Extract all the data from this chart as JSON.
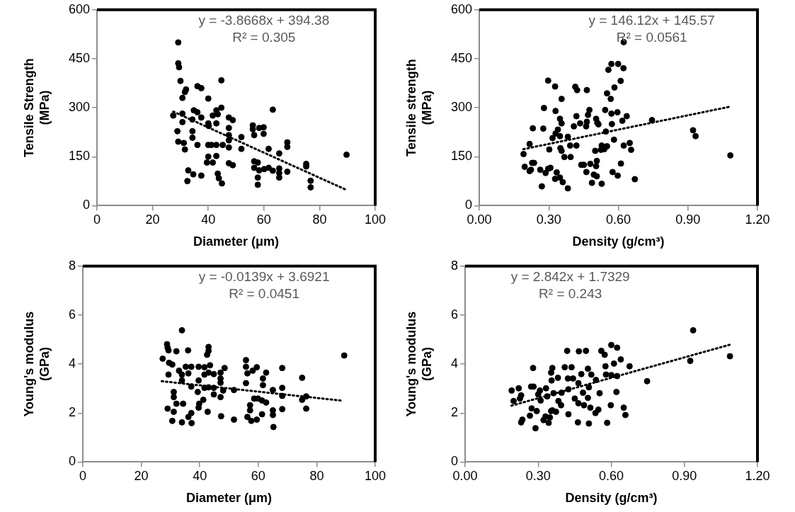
{
  "chart_data": [
    {
      "type": "scatter",
      "xlabel": "Diameter (μm)",
      "ylabel": "Tensile Strength (MPa)",
      "xlim": [
        0,
        100
      ],
      "xticks": [
        0,
        20,
        40,
        60,
        80,
        100
      ],
      "ylim": [
        0,
        600
      ],
      "yticks": [
        0,
        150,
        300,
        450,
        600
      ],
      "grid": false,
      "legend": false,
      "annotations": [
        "y = -3.8668x + 394.38",
        "R² = 0.305"
      ],
      "series": [
        {
          "color": "#000000",
          "marker": "circle",
          "x": [
            29.2,
            29.2,
            29.5,
            30,
            32,
            31.6,
            30.7,
            36.1,
            37.5,
            40,
            44.7,
            27.4,
            30.7,
            30.7,
            28.9,
            29.2,
            31.6,
            31.2,
            34.3,
            34.8,
            36.1,
            37.5,
            34.3,
            34.3,
            36.1,
            32.8,
            32.5,
            34.6,
            37.5,
            40,
            41.6,
            42.9,
            44.7,
            43.4,
            42.9,
            40.2,
            40,
            41.1,
            42.9,
            45.2,
            40,
            42.9,
            39.5,
            41.6,
            43.4,
            43.8,
            44.9,
            47.4,
            48.8,
            47.4,
            47.4,
            47.4,
            47.4,
            47.4,
            48.8,
            51.9,
            51.9,
            56,
            56,
            58.3,
            59.9,
            56.5,
            59.9,
            61.7,
            65.5,
            63.2,
            68.4,
            68.4,
            56.5,
            57.8,
            56.5,
            58.3,
            60.1,
            61.7,
            63.2,
            65.5,
            65.5,
            65.5,
            68.4,
            57.8,
            57.8,
            75.2,
            75.2,
            76.8,
            76.8,
            89.7
          ],
          "values": [
            500,
            436,
            424,
            382,
            356,
            348,
            330,
            366,
            360,
            328,
            384,
            276,
            282,
            256,
            228,
            196,
            172,
            192,
            264,
            292,
            286,
            270,
            228,
            208,
            186,
            108,
            75,
            96,
            92,
            252,
            276,
            292,
            300,
            280,
            252,
            244,
            186,
            186,
            186,
            186,
            150,
            152,
            132,
            132,
            98,
            84,
            68,
            270,
            262,
            238,
            216,
            200,
            178,
            130,
            124,
            210,
            174,
            246,
            234,
            238,
            240,
            216,
            220,
            174,
            160,
            294,
            194,
            180,
            136,
            132,
            116,
            108,
            112,
            116,
            107,
            114,
            100,
            86,
            104,
            86,
            64,
            128,
            120,
            76,
            56,
            156
          ]
        },
        {
          "type": "line",
          "color": "#000000",
          "marker": "none",
          "line_style": "dotted",
          "x": [
            27.4,
            89.7
          ],
          "values": [
            288,
            48
          ]
        }
      ]
    },
    {
      "type": "scatter",
      "xlabel": "Density (g/cm³)",
      "ylabel": "Tensile strength (MPa)",
      "xlim": [
        0,
        1.2
      ],
      "xticks": [
        {
          "value": 0,
          "label": "0.00"
        },
        {
          "value": 0.3,
          "label": "0.30"
        },
        {
          "value": 0.6,
          "label": "0.60"
        },
        {
          "value": 0.9,
          "label": "0.90"
        },
        {
          "value": 1.2,
          "label": "1.20"
        }
      ],
      "ylim": [
        0,
        600
      ],
      "yticks": [
        0,
        150,
        300,
        450,
        600
      ],
      "grid": false,
      "legend": false,
      "annotations": [
        "y = 146.12x + 145.57",
        "R² = 0.0561"
      ],
      "series": [
        {
          "color": "#000000",
          "marker": "circle",
          "x": [
            0.191,
            0.196,
            0.217,
            0.217,
            0.223,
            0.228,
            0.236,
            0.231,
            0.263,
            0.27,
            0.276,
            0.279,
            0.286,
            0.297,
            0.307,
            0.297,
            0.302,
            0.327,
            0.329,
            0.316,
            0.329,
            0.339,
            0.348,
            0.355,
            0.348,
            0.35,
            0.355,
            0.355,
            0.334,
            0.327,
            0.348,
            0.36,
            0.382,
            0.367,
            0.382,
            0.392,
            0.394,
            0.408,
            0.419,
            0.419,
            0.422,
            0.414,
            0.435,
            0.44,
            0.451,
            0.462,
            0.461,
            0.464,
            0.464,
            0.469,
            0.475,
            0.479,
            0.486,
            0.494,
            0.5,
            0.504,
            0.507,
            0.504,
            0.509,
            0.514,
            0.507,
            0.528,
            0.528,
            0.525,
            0.539,
            0.551,
            0.546,
            0.543,
            0.551,
            0.567,
            0.557,
            0.57,
            0.599,
            0.622,
            0.61,
            0.583,
            0.57,
            0.572,
            0.581,
            0.575,
            0.597,
            0.596,
            0.617,
            0.623,
            0.636,
            0.611,
            0.623,
            0.649,
            0.655,
            0.671,
            0.745,
            0.922,
            0.933,
            1.083
          ],
          "values": [
            158,
            119,
            189,
            106,
            110,
            131,
            131,
            237,
            110,
            59,
            236,
            299,
            100,
            113,
            116,
            383,
            172,
            365,
            290,
            207,
            221,
            233,
            266,
            252,
            213,
            176,
            168,
            327,
            102,
            82,
            86,
            72,
            53,
            149,
            211,
            184,
            149,
            243,
            184,
            274,
            354,
            364,
            252,
            125,
            125,
            103,
            243,
            257,
            354,
            278,
            293,
            128,
            70,
            95,
            168,
            121,
            137,
            266,
            254,
            249,
            90,
            67,
            184,
            171,
            173,
            182,
            227,
            293,
            344,
            327,
            416,
            434,
            434,
            421,
            382,
            362,
            282,
            250,
            202,
            103,
            92,
            286,
            260,
            184,
            274,
            129,
            501,
            192,
            171,
            81,
            262,
            231,
            213,
            154
          ]
        },
        {
          "type": "line",
          "color": "#000000",
          "marker": "none",
          "line_style": "dotted",
          "x": [
            0.19,
            1.08
          ],
          "values": [
            173,
            303
          ]
        }
      ]
    },
    {
      "type": "scatter",
      "xlabel": "Diameter (μm)",
      "ylabel": "Young's modulus (GPa)",
      "xlim": [
        0,
        100
      ],
      "xticks": [
        0,
        20,
        40,
        60,
        80,
        100
      ],
      "ylim": [
        0,
        8
      ],
      "yticks": [
        0,
        2,
        4,
        6,
        8
      ],
      "grid": false,
      "legend": false,
      "annotations": [
        "y = -0.0139x + 3.6921",
        "R² = 0.0451"
      ],
      "series": [
        {
          "color": "#000000",
          "marker": "circle",
          "x": [
            33.9,
            28.8,
            29,
            29.3,
            32,
            36,
            43,
            43,
            42.5,
            27.3,
            29.5,
            30.6,
            35.2,
            37.1,
            39.6,
            41.6,
            43.5,
            48.5,
            29.3,
            32.9,
            33.9,
            36.1,
            33.9,
            37.1,
            39.6,
            41.6,
            43,
            44.8,
            47.1,
            47.1,
            47.1,
            41.6,
            43,
            44.8,
            39.3,
            44.8,
            47.1,
            48,
            51.7,
            31.1,
            31.1,
            32,
            34.3,
            29,
            31.1,
            41.2,
            39.8,
            39.6,
            42.7,
            37.1,
            36.1,
            30.6,
            33.9,
            37.2,
            47.3,
            51.7,
            55.8,
            55.8,
            56.3,
            59.5,
            58.1,
            62.7,
            55.8,
            61.6,
            61.6,
            65,
            68.2,
            68.2,
            68.2,
            58.6,
            59.9,
            61.3,
            62.7,
            57.2,
            57.2,
            56.3,
            57.6,
            59.5,
            61.3,
            65,
            65,
            68.2,
            65.2,
            75,
            75,
            76.4,
            76.4,
            89.4
          ],
          "values": [
            5.38,
            4.81,
            4.67,
            4.56,
            4.52,
            4.56,
            4.7,
            4.54,
            4.38,
            4.22,
            4.05,
            3.98,
            3.89,
            3.89,
            3.89,
            3.87,
            3.95,
            3.84,
            3.57,
            3.73,
            3.57,
            3.62,
            3.33,
            3.08,
            3.33,
            3.57,
            3.65,
            3.59,
            3.65,
            3.41,
            3.24,
            3.03,
            3.05,
            3.03,
            2.86,
            2.76,
            2.65,
            2.92,
            2.94,
            2.86,
            2.65,
            2.38,
            2.38,
            2.18,
            2.05,
            2.54,
            2.38,
            2.22,
            2.05,
            2,
            1.84,
            1.68,
            1.62,
            1.59,
            1.87,
            1.73,
            4.16,
            3.89,
            3.62,
            3.87,
            3.73,
            3.65,
            3.22,
            3.41,
            3.14,
            2.94,
            3.84,
            3.03,
            2.7,
            2.59,
            2.59,
            2.51,
            2.43,
            2.32,
            2.11,
            1.84,
            1.68,
            1.73,
            1.95,
            2.11,
            1.92,
            2.16,
            1.43,
            3.44,
            2.54,
            2.68,
            2.18,
            4.35
          ]
        },
        {
          "type": "line",
          "color": "#000000",
          "marker": "none",
          "line_style": "dotted",
          "x": [
            27,
            89
          ],
          "values": [
            3.3,
            2.5
          ]
        }
      ]
    },
    {
      "type": "scatter",
      "xlabel": "Density (g/cm³)",
      "ylabel": "Young's modulus (GPa)",
      "xlim": [
        0,
        1.2
      ],
      "xticks": [
        {
          "value": 0,
          "label": "0.00"
        },
        {
          "value": 0.3,
          "label": "0.30"
        },
        {
          "value": 0.6,
          "label": "0.60"
        },
        {
          "value": 0.9,
          "label": "0.90"
        },
        {
          "value": 1.2,
          "label": "1.20"
        }
      ],
      "ylim": [
        0,
        8
      ],
      "yticks": [
        0,
        2,
        4,
        6,
        8
      ],
      "grid": false,
      "legend": false,
      "annotations": [
        "y = 2.842x + 1.7329",
        "R² = 0.243"
      ],
      "series": [
        {
          "color": "#000000",
          "marker": "circle",
          "x": [
            0.191,
            0.199,
            0.22,
            0.23,
            0.225,
            0.23,
            0.235,
            0.266,
            0.273,
            0.271,
            0.279,
            0.281,
            0.289,
            0.294,
            0.3,
            0.307,
            0.31,
            0.322,
            0.33,
            0.332,
            0.337,
            0.343,
            0.348,
            0.353,
            0.358,
            0.355,
            0.353,
            0.358,
            0.363,
            0.373,
            0.381,
            0.383,
            0.394,
            0.396,
            0.409,
            0.419,
            0.422,
            0.424,
            0.424,
            0.437,
            0.443,
            0.45,
            0.463,
            0.465,
            0.465,
            0.467,
            0.477,
            0.484,
            0.488,
            0.496,
            0.504,
            0.504,
            0.508,
            0.508,
            0.514,
            0.518,
            0.535,
            0.537,
            0.547,
            0.552,
            0.559,
            0.573,
            0.576,
            0.578,
            0.583,
            0.598,
            0.6,
            0.611,
            0.6,
            0.624,
            0.624,
            0.621,
            0.639,
            0.651,
            0.658,
            0.675,
            0.747,
            0.924,
            0.936,
            1.087
          ],
          "values": [
            2.92,
            2.49,
            3.01,
            2.72,
            2.59,
            1.62,
            1.73,
            1.89,
            2.19,
            3.08,
            3.84,
            3.08,
            1.38,
            2.08,
            2.76,
            2.92,
            2.51,
            1.71,
            1.86,
            3.01,
            2.68,
            1.6,
            1.82,
            2.08,
            2.11,
            3.33,
            3.65,
            3.84,
            2.81,
            2.05,
            3.44,
            2.49,
            2.32,
            2.83,
            3.87,
            4.54,
            3.41,
            1.95,
            2.97,
            3.87,
            3.41,
            2.59,
            1.62,
            2.4,
            3.22,
            4.52,
            3.59,
            2.83,
            2.32,
            4.54,
            3.81,
            2.62,
            3.05,
            1.57,
            2.22,
            3.57,
            2,
            3.35,
            2.14,
            2.81,
            4.54,
            4.38,
            3.91,
            3.57,
            1.6,
            2.32,
            4.78,
            4.02,
            3.55,
            4.67,
            3.51,
            2.86,
            4.19,
            2.22,
            1.92,
            3.91,
            3.3,
            4.13,
            5.38,
            4.32
          ]
        },
        {
          "type": "line",
          "color": "#000000",
          "marker": "none",
          "line_style": "dotted",
          "x": [
            0.19,
            1.09
          ],
          "values": [
            2.3,
            4.8
          ]
        }
      ]
    }
  ]
}
